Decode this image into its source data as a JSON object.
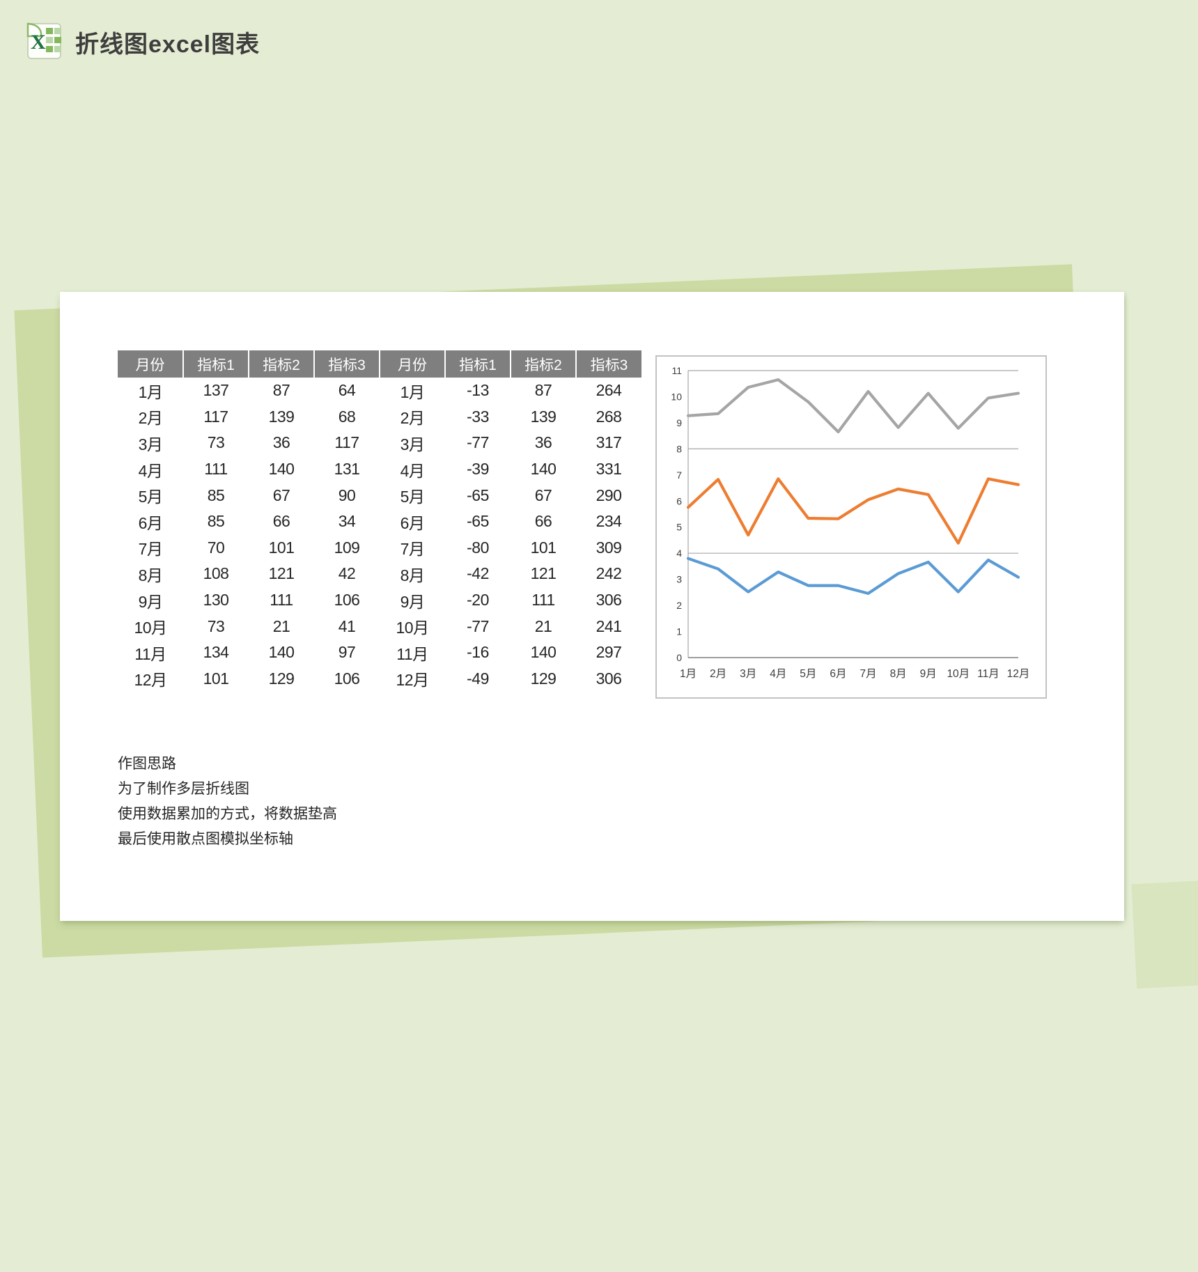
{
  "header": {
    "title": "折线图excel图表",
    "icon": "excel-icon"
  },
  "table": {
    "headers": [
      "月份",
      "指标1",
      "指标2",
      "指标3",
      "月份",
      "指标1",
      "指标2",
      "指标3"
    ],
    "rows": [
      [
        "1月",
        "137",
        "87",
        "64",
        "1月",
        "-13",
        "87",
        "264"
      ],
      [
        "2月",
        "117",
        "139",
        "68",
        "2月",
        "-33",
        "139",
        "268"
      ],
      [
        "3月",
        "73",
        "36",
        "117",
        "3月",
        "-77",
        "36",
        "317"
      ],
      [
        "4月",
        "111",
        "140",
        "131",
        "4月",
        "-39",
        "140",
        "331"
      ],
      [
        "5月",
        "85",
        "67",
        "90",
        "5月",
        "-65",
        "67",
        "290"
      ],
      [
        "6月",
        "85",
        "66",
        "34",
        "6月",
        "-65",
        "66",
        "234"
      ],
      [
        "7月",
        "70",
        "101",
        "109",
        "7月",
        "-80",
        "101",
        "309"
      ],
      [
        "8月",
        "108",
        "121",
        "42",
        "8月",
        "-42",
        "121",
        "242"
      ],
      [
        "9月",
        "130",
        "111",
        "106",
        "9月",
        "-20",
        "111",
        "306"
      ],
      [
        "10月",
        "73",
        "21",
        "41",
        "10月",
        "-77",
        "21",
        "241"
      ],
      [
        "11月",
        "134",
        "140",
        "97",
        "11月",
        "-16",
        "140",
        "297"
      ],
      [
        "12月",
        "101",
        "129",
        "106",
        "12月",
        "-49",
        "129",
        "306"
      ]
    ]
  },
  "chart_data": {
    "type": "line",
    "title": "",
    "xlabel": "",
    "ylabel": "",
    "legend": "none",
    "categories": [
      "1月",
      "2月",
      "3月",
      "4月",
      "5月",
      "6月",
      "7月",
      "8月",
      "9月",
      "10月",
      "11月",
      "12月"
    ],
    "series": [
      {
        "name": "指标1",
        "color": "#5B9BD5",
        "values": [
          3.8,
          3.4,
          2.52,
          3.28,
          2.76,
          2.76,
          2.46,
          3.22,
          3.66,
          2.52,
          3.74,
          3.08
        ]
      },
      {
        "name": "指标2",
        "color": "#ED7D31",
        "values": [
          5.76,
          6.83,
          4.7,
          6.85,
          5.34,
          5.32,
          6.05,
          6.46,
          6.25,
          4.39,
          6.85,
          6.63
        ]
      },
      {
        "name": "指标3",
        "color": "#A5A5A5",
        "values": [
          9.27,
          9.35,
          10.36,
          10.65,
          9.8,
          8.65,
          10.2,
          8.82,
          10.13,
          8.79,
          9.95,
          10.13
        ]
      }
    ],
    "ylim": [
      0,
      11
    ],
    "yticks": [
      0,
      1,
      2,
      3,
      4,
      5,
      6,
      7,
      8,
      9,
      10,
      11
    ],
    "gridline_values": [
      4,
      8,
      11
    ],
    "grid": "horizontal-partial"
  },
  "notes": {
    "lines": [
      "作图思路",
      "为了制作多层折线图",
      "使用数据累加的方式，将数据垫高",
      "最后使用散点图模拟坐标轴"
    ]
  },
  "colors": {
    "background": "#e4edd3",
    "sheet_mid_green": "#ccdaa3",
    "sheet_sub_green": "#d9e5bf",
    "card": "#ffffff",
    "table_header_bg": "#7f7f7f",
    "table_header_text": "#ffffff",
    "body_text": "#262626",
    "title_text": "#3e3e3e",
    "chart_border": "#c2c2c2",
    "axis_line": "#7f7f7f",
    "gridline": "#a6a6a6",
    "series_blue": "#5B9BD5",
    "series_orange": "#ED7D31",
    "series_gray": "#A5A5A5"
  }
}
